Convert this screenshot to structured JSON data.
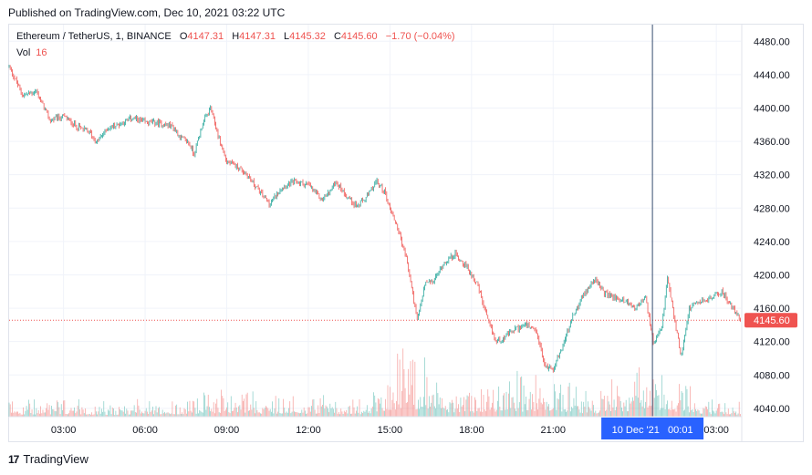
{
  "header": {
    "published": "Published on TradingView.com, Dec 10, 2021 03:22 UTC"
  },
  "legend": {
    "symbol": "Ethereum / TetherUS, 1, BINANCE",
    "o_label": "O",
    "o_value": "4147.31",
    "h_label": "H",
    "h_value": "4147.31",
    "l_label": "L",
    "l_value": "4145.32",
    "c_label": "C",
    "c_value": "4145.60",
    "change": "−1.70 (−0.04%)",
    "vol_label": "Vol",
    "vol_value": "16"
  },
  "footer": {
    "brand": "TradingView",
    "mark": "17"
  },
  "colors": {
    "up": "#26a69a",
    "down": "#ef5350",
    "crosshair": "#2962ff",
    "grid": "#f0f3fa"
  },
  "chart_data": {
    "type": "candlestick",
    "ylim": [
      4030,
      4500
    ],
    "y_ticks": [
      4040,
      4080,
      4120,
      4160,
      4200,
      4240,
      4280,
      4320,
      4360,
      4400,
      4440,
      4480
    ],
    "y_tick_labels": [
      "4040.00",
      "4080.00",
      "4120.00",
      "4160.00",
      "4200.00",
      "4240.00",
      "4280.00",
      "4320.00",
      "4360.00",
      "4400.00",
      "4440.00",
      "4480.00"
    ],
    "x_ticks": [
      2.0,
      5.0,
      8.0,
      11.0,
      14.0,
      17.0,
      20.0,
      26.0
    ],
    "x_tick_labels": [
      "03:00",
      "06:00",
      "09:00",
      "12:00",
      "15:00",
      "18:00",
      "21:00",
      "03:00"
    ],
    "x_range_hours": [
      0.0,
      26.9
    ],
    "last_price": 4145.6,
    "last_price_label": "4145.60",
    "crosshair_hours": 23.65,
    "crosshair_label": "10 Dec '21   00:01",
    "price_path": [
      [
        0.0,
        4450
      ],
      [
        0.5,
        4415
      ],
      [
        1.0,
        4420
      ],
      [
        1.5,
        4385
      ],
      [
        2.0,
        4390
      ],
      [
        2.5,
        4378
      ],
      [
        3.0,
        4370
      ],
      [
        3.2,
        4358
      ],
      [
        3.6,
        4375
      ],
      [
        4.0,
        4380
      ],
      [
        4.5,
        4388
      ],
      [
        5.0,
        4383
      ],
      [
        5.5,
        4382
      ],
      [
        6.0,
        4378
      ],
      [
        6.3,
        4365
      ],
      [
        6.6,
        4358
      ],
      [
        6.8,
        4345
      ],
      [
        7.1,
        4380
      ],
      [
        7.4,
        4400
      ],
      [
        7.7,
        4365
      ],
      [
        8.0,
        4335
      ],
      [
        8.4,
        4330
      ],
      [
        8.8,
        4318
      ],
      [
        9.2,
        4300
      ],
      [
        9.6,
        4285
      ],
      [
        10.0,
        4305
      ],
      [
        10.5,
        4312
      ],
      [
        11.0,
        4308
      ],
      [
        11.5,
        4290
      ],
      [
        11.8,
        4300
      ],
      [
        12.0,
        4312
      ],
      [
        12.4,
        4295
      ],
      [
        12.8,
        4282
      ],
      [
        13.2,
        4295
      ],
      [
        13.5,
        4312
      ],
      [
        13.8,
        4300
      ],
      [
        14.0,
        4280
      ],
      [
        14.3,
        4255
      ],
      [
        14.6,
        4220
      ],
      [
        14.8,
        4185
      ],
      [
        15.0,
        4145
      ],
      [
        15.3,
        4190
      ],
      [
        15.6,
        4192
      ],
      [
        16.0,
        4215
      ],
      [
        16.4,
        4225
      ],
      [
        16.8,
        4210
      ],
      [
        17.2,
        4190
      ],
      [
        17.6,
        4145
      ],
      [
        17.9,
        4120
      ],
      [
        18.2,
        4125
      ],
      [
        18.6,
        4135
      ],
      [
        19.0,
        4140
      ],
      [
        19.4,
        4130
      ],
      [
        19.7,
        4090
      ],
      [
        20.0,
        4088
      ],
      [
        20.3,
        4110
      ],
      [
        20.7,
        4148
      ],
      [
        21.1,
        4175
      ],
      [
        21.5,
        4195
      ],
      [
        21.9,
        4178
      ],
      [
        22.3,
        4172
      ],
      [
        22.7,
        4168
      ],
      [
        23.0,
        4160
      ],
      [
        23.4,
        4172
      ],
      [
        23.7,
        4115
      ],
      [
        24.0,
        4138
      ],
      [
        24.2,
        4195
      ],
      [
        24.5,
        4140
      ],
      [
        24.7,
        4102
      ],
      [
        25.0,
        4160
      ],
      [
        25.4,
        4168
      ],
      [
        25.8,
        4172
      ],
      [
        26.2,
        4180
      ],
      [
        26.6,
        4160
      ],
      [
        26.9,
        4146
      ]
    ],
    "volume_levels": [
      [
        0.0,
        12
      ],
      [
        2.0,
        14
      ],
      [
        3.7,
        10
      ],
      [
        6.5,
        15
      ],
      [
        7.5,
        20
      ],
      [
        8.5,
        22
      ],
      [
        9.0,
        18
      ],
      [
        11.5,
        16
      ],
      [
        13.0,
        14
      ],
      [
        14.5,
        48
      ],
      [
        15.3,
        40
      ],
      [
        16.5,
        20
      ],
      [
        17.5,
        26
      ],
      [
        18.3,
        30
      ],
      [
        19.8,
        26
      ],
      [
        21.5,
        18
      ],
      [
        23.6,
        42
      ],
      [
        24.2,
        36
      ],
      [
        25.5,
        14
      ],
      [
        26.9,
        10
      ]
    ]
  }
}
